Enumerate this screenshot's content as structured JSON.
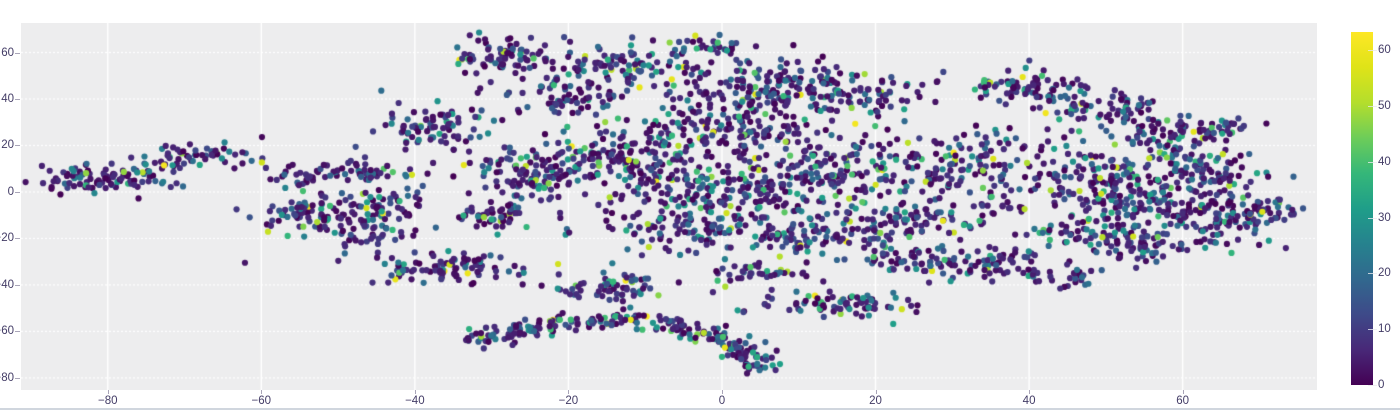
{
  "style": {
    "page_bg": "#ffffff",
    "plot_bg": "#ededee",
    "grid_color": "#ffffff",
    "text_color": "#433c66",
    "axis_tick_color": "#a9a5b8",
    "divider_color": "#d0d6de"
  },
  "chart_data": {
    "type": "scatter",
    "title": "",
    "xlabel": "",
    "ylabel": "",
    "grid": true,
    "legend": "none",
    "x_ticks": [
      -80,
      -60,
      -40,
      -20,
      0,
      20,
      40,
      60
    ],
    "y_ticks": [
      60,
      40,
      20,
      0,
      -20,
      -40,
      -60,
      -80
    ],
    "x_range": [
      -91.3,
      77.5
    ],
    "y_range": [
      -85.2,
      72.7
    ],
    "marker_size_px": 6.2,
    "colormap": "viridis",
    "colormap_stops": [
      [
        0.0,
        "#440154"
      ],
      [
        0.1,
        "#482878"
      ],
      [
        0.2,
        "#3e4a89"
      ],
      [
        0.3,
        "#31688e"
      ],
      [
        0.4,
        "#26828e"
      ],
      [
        0.5,
        "#1f9e89"
      ],
      [
        0.6,
        "#35b779"
      ],
      [
        0.7,
        "#6dcd59"
      ],
      [
        0.8,
        "#b4de2c"
      ],
      [
        0.9,
        "#dfe318"
      ],
      [
        1.0,
        "#fde725"
      ]
    ],
    "colorbar": {
      "min": 0,
      "max": 63.3,
      "ticks": [
        0,
        10,
        20,
        30,
        40,
        50,
        60
      ]
    },
    "value_bins": [
      [
        0,
        8
      ],
      [
        8,
        22
      ],
      [
        22,
        40
      ],
      [
        40,
        55
      ],
      [
        55,
        63
      ]
    ],
    "seed": 1337,
    "clusters": [
      [
        -80,
        6,
        4.5,
        3.5,
        100,
        0.05
      ],
      [
        -68,
        15.5,
        4,
        2.2,
        55,
        0.05
      ],
      [
        -55,
        7,
        2.5,
        2.5,
        28,
        0.1
      ],
      [
        -47,
        9,
        3.5,
        2.5,
        45,
        0.1
      ],
      [
        -56,
        -8,
        3,
        4,
        40,
        0.1
      ],
      [
        -48,
        -14,
        4.5,
        5,
        85,
        0.15
      ],
      [
        -44,
        -4,
        3,
        3,
        40,
        0.1
      ],
      [
        -30,
        -10,
        3.5,
        4,
        50,
        0.15
      ],
      [
        -38,
        27,
        3.5,
        4.5,
        75,
        0.25
      ],
      [
        -36,
        -33,
        5,
        3.5,
        90,
        0.1
      ],
      [
        -28,
        57,
        3.5,
        4.5,
        85,
        0.15
      ],
      [
        -20,
        41,
        4,
        4,
        60,
        0.2
      ],
      [
        -12,
        53,
        4.5,
        4.5,
        95,
        0.15
      ],
      [
        -2,
        62,
        3,
        3,
        35,
        0.1
      ],
      [
        -25,
        8,
        4.5,
        6,
        110,
        0.15
      ],
      [
        -13,
        14,
        5.5,
        7,
        130,
        0.2
      ],
      [
        0,
        26,
        7,
        7,
        150,
        0.2
      ],
      [
        8,
        50,
        4,
        4,
        60,
        0.15
      ],
      [
        5,
        42,
        5,
        4,
        70,
        0.2
      ],
      [
        20,
        42,
        5,
        4,
        70,
        0.2
      ],
      [
        0,
        1,
        7,
        7,
        150,
        0.2
      ],
      [
        15,
        9,
        7,
        7,
        130,
        0.25
      ],
      [
        -5,
        -14,
        6,
        5,
        90,
        0.2
      ],
      [
        10,
        -20,
        7,
        4.5,
        100,
        0.2
      ],
      [
        25,
        -12,
        5.5,
        5.5,
        90,
        0.25
      ],
      [
        30,
        13,
        5.5,
        7,
        100,
        0.2
      ],
      [
        -14,
        -41,
        4,
        2.8,
        60,
        0.2
      ],
      [
        5,
        -35,
        3.5,
        2.5,
        40,
        0.15
      ],
      [
        16,
        -48,
        5,
        3.2,
        80,
        0.2
      ],
      [
        24,
        -30,
        4,
        3,
        50,
        0.2
      ],
      [
        35,
        -30,
        4.5,
        3.5,
        60,
        0.2
      ],
      [
        44,
        -37,
        3,
        2.2,
        30,
        0.15
      ],
      [
        55,
        -25,
        4,
        2.5,
        40,
        0.15
      ],
      [
        40,
        45,
        4,
        3.2,
        70,
        0.2
      ],
      [
        50,
        36,
        4.5,
        3.5,
        70,
        0.2
      ],
      [
        58,
        23,
        3.5,
        4.5,
        70,
        0.25
      ],
      [
        64,
        28,
        3,
        2.5,
        30,
        0.2
      ],
      [
        48,
        6,
        6,
        7,
        120,
        0.25
      ],
      [
        58,
        -4,
        5.5,
        5.5,
        110,
        0.3
      ],
      [
        50,
        -18,
        6,
        3.5,
        80,
        0.25
      ],
      [
        64,
        9,
        3.5,
        4.5,
        60,
        0.25
      ],
      [
        66,
        -12,
        4,
        6,
        70,
        0.3
      ],
      [
        71,
        -8,
        2.5,
        3,
        35,
        0.2
      ],
      [
        -30,
        -62,
        2.2,
        2,
        30,
        0.5
      ],
      [
        -25,
        -59,
        2.2,
        1.8,
        30,
        0.5
      ],
      [
        -19,
        -56,
        2.2,
        1.8,
        30,
        0.5
      ],
      [
        -13,
        -55,
        2.2,
        1.8,
        30,
        0.5
      ],
      [
        -7,
        -57,
        2.2,
        1.8,
        28,
        0.5
      ],
      [
        -2,
        -61,
        2,
        1.8,
        26,
        0.4
      ],
      [
        1,
        -66,
        1.8,
        1.8,
        24,
        0.4
      ],
      [
        3,
        -71,
        1.6,
        1.8,
        22,
        0.4
      ],
      [
        4,
        -75,
        1.4,
        1.4,
        16,
        0.4
      ],
      [
        0,
        5,
        30,
        25,
        130,
        0.2
      ],
      [
        45,
        5,
        12,
        12,
        50,
        0.2
      ]
    ]
  }
}
